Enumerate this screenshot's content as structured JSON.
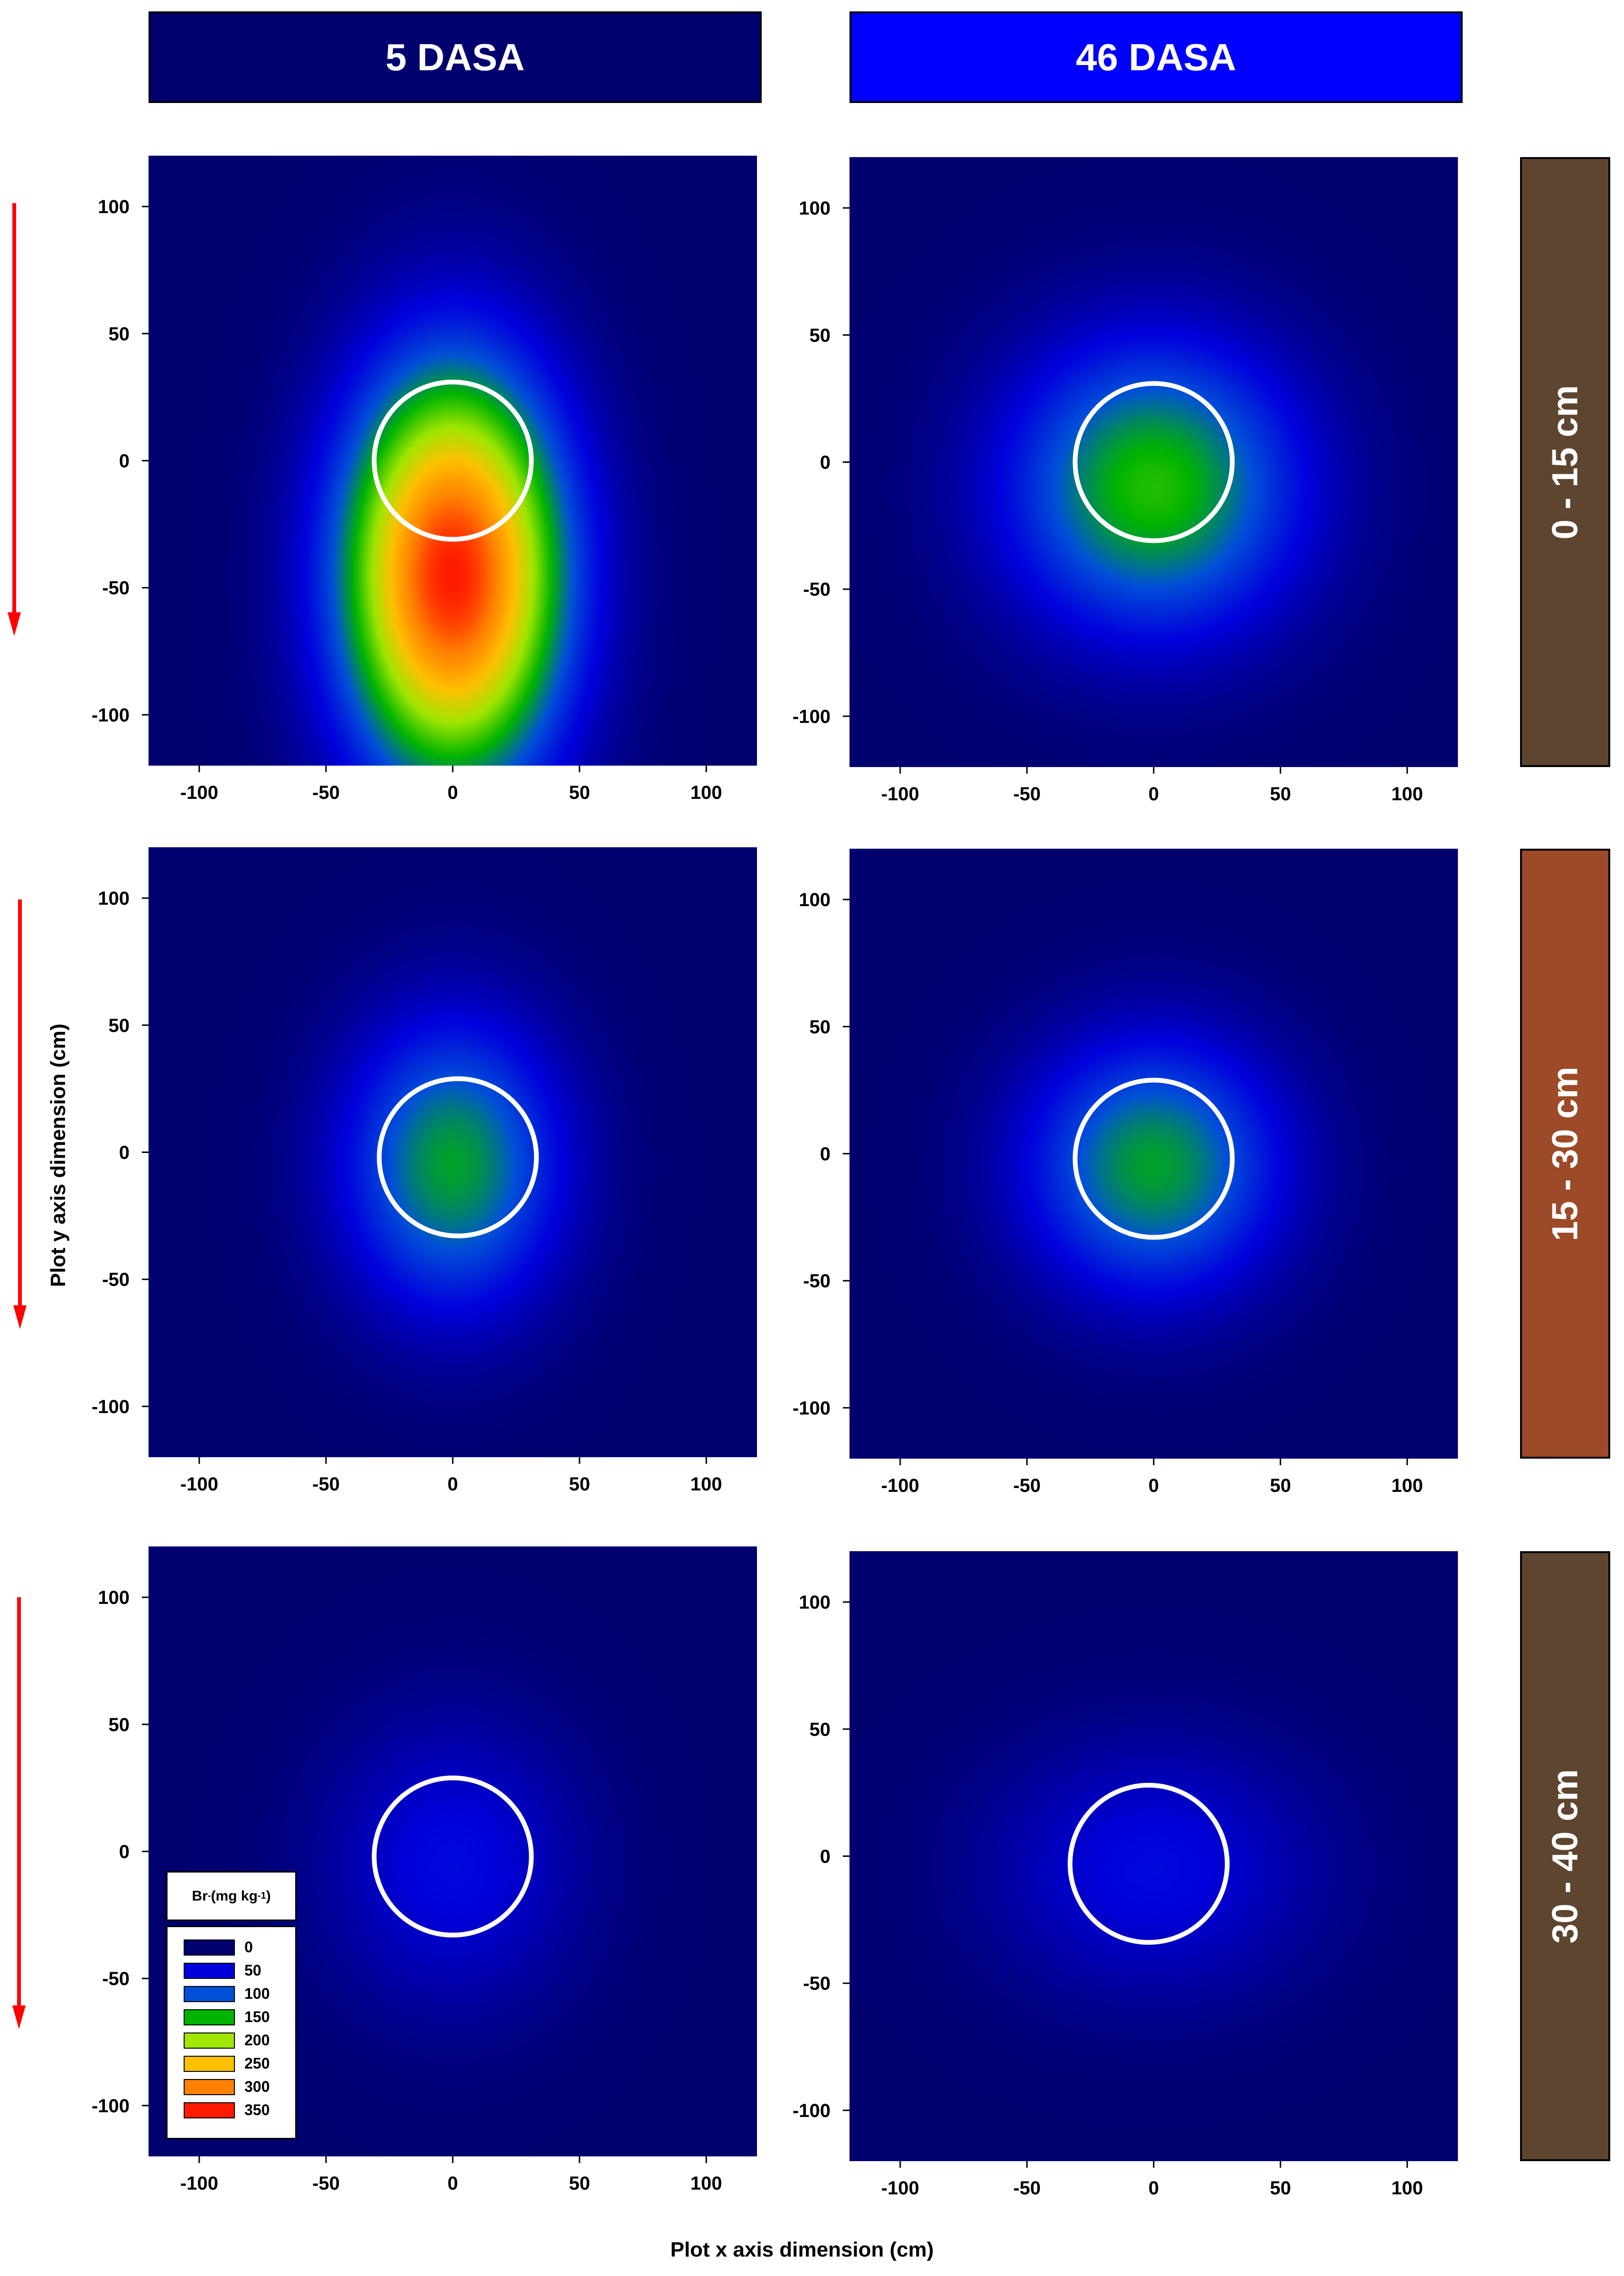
{
  "columns": [
    {
      "label": "5 DASA",
      "color": "#00006e"
    },
    {
      "label": "46 DASA",
      "color": "#0000ff"
    }
  ],
  "depths": [
    {
      "label": "0 - 15 cm",
      "color": "#5e4530"
    },
    {
      "label": "15 - 30 cm",
      "color": "#9c4a28"
    },
    {
      "label": "30 - 40 cm",
      "color": "#5e4530"
    }
  ],
  "axes": {
    "xlabel": "Plot x axis dimension (cm)",
    "ylabel": "Plot y axis dimension (cm)",
    "xticks": [
      "-100",
      "-50",
      "0",
      "50",
      "100"
    ],
    "yticks": [
      "100",
      "50",
      "0",
      "-50",
      "-100"
    ]
  },
  "legend": {
    "title": "Br",
    "title_sup": "-",
    "title_unit": " (mg kg",
    "title_unit_sup": "-1",
    "title_close": ")",
    "items": [
      {
        "label": "0",
        "color": "#00006e"
      },
      {
        "label": "50",
        "color": "#0000dc"
      },
      {
        "label": "100",
        "color": "#0050d8"
      },
      {
        "label": "150",
        "color": "#00b400"
      },
      {
        "label": "200",
        "color": "#a0e600"
      },
      {
        "label": "250",
        "color": "#ffc000"
      },
      {
        "label": "300",
        "color": "#ff8000"
      },
      {
        "label": "350",
        "color": "#ff1a00"
      }
    ]
  },
  "chart_data": {
    "type": "heatmap",
    "xlabel": "Plot x axis dimension (cm)",
    "ylabel": "Plot y axis dimension (cm)",
    "xlim": [
      -120,
      120
    ],
    "ylim": [
      -120,
      120
    ],
    "colorbar_label": "Br- (mg kg-1)",
    "colorbar_levels": [
      0,
      50,
      100,
      150,
      200,
      250,
      300,
      350
    ],
    "panels": [
      {
        "time": "5 DASA",
        "depth": "0 - 15 cm",
        "peak_value": 350,
        "peak_x": 0,
        "peak_y": -45,
        "spread_x": 30,
        "spread_y": 55,
        "ring_center": [
          0,
          0
        ],
        "ring_radius": 31
      },
      {
        "time": "46 DASA",
        "depth": "0 - 15 cm",
        "peak_value": 160,
        "peak_x": 0,
        "peak_y": -10,
        "spread_x": 40,
        "spread_y": 40,
        "ring_center": [
          0,
          0
        ],
        "ring_radius": 31
      },
      {
        "time": "5 DASA",
        "depth": "15 - 30 cm",
        "peak_value": 140,
        "peak_x": 0,
        "peak_y": -5,
        "spread_x": 30,
        "spread_y": 40,
        "ring_center": [
          2,
          -2
        ],
        "ring_radius": 31
      },
      {
        "time": "46 DASA",
        "depth": "15 - 30 cm",
        "peak_value": 140,
        "peak_x": 0,
        "peak_y": -5,
        "spread_x": 35,
        "spread_y": 35,
        "ring_center": [
          0,
          -2
        ],
        "ring_radius": 31
      },
      {
        "time": "5 DASA",
        "depth": "30 - 40 cm",
        "peak_value": 55,
        "peak_x": 0,
        "peak_y": -5,
        "spread_x": 35,
        "spread_y": 40,
        "ring_center": [
          0,
          -2
        ],
        "ring_radius": 31
      },
      {
        "time": "46 DASA",
        "depth": "30 - 40 cm",
        "peak_value": 55,
        "peak_x": 0,
        "peak_y": -5,
        "spread_x": 45,
        "spread_y": 35,
        "ring_center": [
          -2,
          -3
        ],
        "ring_radius": 31
      }
    ]
  }
}
